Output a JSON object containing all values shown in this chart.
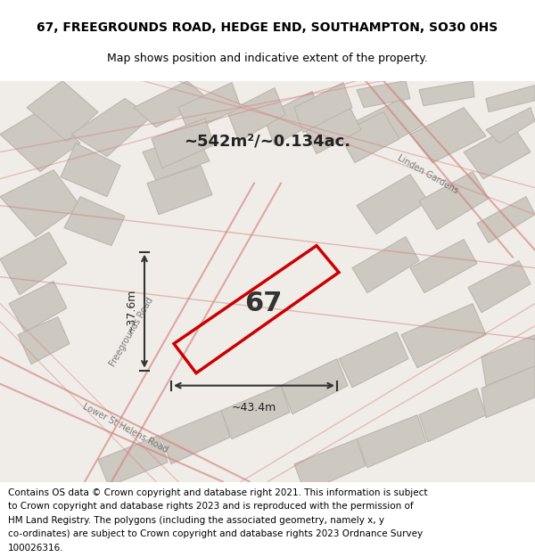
{
  "title_line1": "67, FREEGROUNDS ROAD, HEDGE END, SOUTHAMPTON, SO30 0HS",
  "title_line2": "Map shows position and indicative extent of the property.",
  "area_label": "~542m²/~0.134ac.",
  "property_number": "67",
  "dim_width": "~43.4m",
  "dim_height": "~37.6m",
  "road_label1": "Freegrounds Road",
  "road_label2": "Linden Gardens",
  "road_label3": "Lower St Helens Road",
  "footer_lines": [
    "Contains OS data © Crown copyright and database right 2021. This information is subject",
    "to Crown copyright and database rights 2023 and is reproduced with the permission of",
    "HM Land Registry. The polygons (including the associated geometry, namely x, y",
    "co-ordinates) are subject to Crown copyright and database rights 2023 Ordnance Survey",
    "100026316."
  ],
  "bg_color": "#f0ede8",
  "building_color": "#cdc8c0",
  "building_edge": "#bbb6ae",
  "property_outline": "#cc0000",
  "dim_line_color": "#333333",
  "street_color": "#d48080",
  "title_fontsize": 10,
  "subtitle_fontsize": 9,
  "footer_fontsize": 7.5
}
